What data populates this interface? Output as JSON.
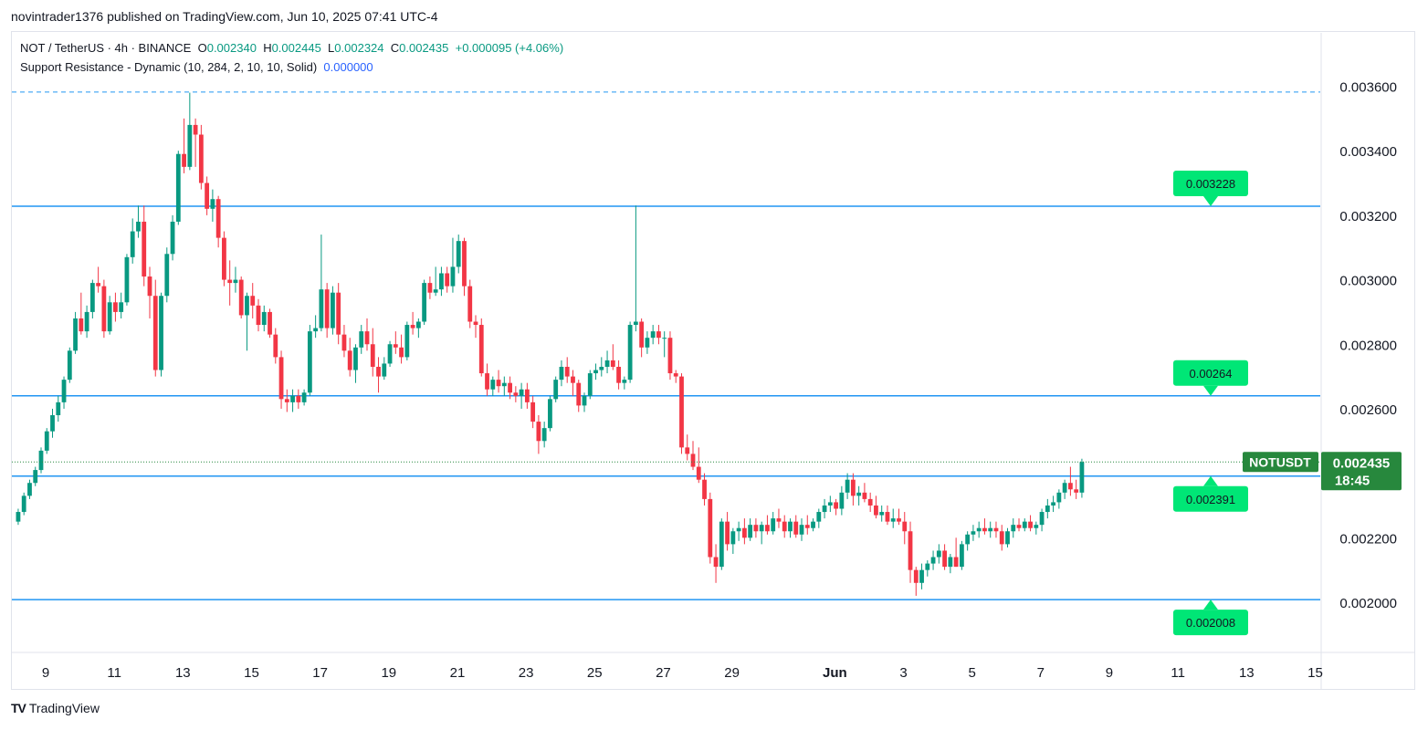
{
  "header": {
    "published": "novintrader1376 published on TradingView.com, Jun 10, 2025 07:41 UTC-4"
  },
  "legend": {
    "symbol": "NOT / TetherUS · 4h · BINANCE",
    "open_key": "O",
    "open": "0.002340",
    "high_key": "H",
    "high": "0.002445",
    "low_key": "L",
    "low": "0.002324",
    "close_key": "C",
    "close": "0.002435",
    "change": "+0.000095 (+4.06%)",
    "indicator": "Support Resistance - Dynamic (10, 284, 2, 10, 10, Solid)",
    "indicator_value": "0.000000"
  },
  "price_tag": {
    "symbol": "NOTUSDT",
    "price": "0.002435",
    "countdown": "18:45"
  },
  "footer": {
    "brand": "TradingView"
  },
  "colors": {
    "up": "#089981",
    "down": "#f23645",
    "level": "#2196f3",
    "label_bg": "#00e676",
    "price_tag": "#27883d"
  },
  "chart_data": {
    "type": "candlestick",
    "interval": "4h",
    "ylim": [
      0.00185,
      0.0037
    ],
    "y_ticks": [
      "0.002000",
      "0.002200",
      "0.002400",
      "0.002600",
      "0.002800",
      "0.003000",
      "0.003200",
      "0.003400",
      "0.003600"
    ],
    "x_ticks": [
      {
        "label": "9",
        "day": 9
      },
      {
        "label": "11",
        "day": 11
      },
      {
        "label": "13",
        "day": 13
      },
      {
        "label": "15",
        "day": 15
      },
      {
        "label": "17",
        "day": 17
      },
      {
        "label": "19",
        "day": 19
      },
      {
        "label": "21",
        "day": 21
      },
      {
        "label": "23",
        "day": 23
      },
      {
        "label": "25",
        "day": 25
      },
      {
        "label": "27",
        "day": 27
      },
      {
        "label": "29",
        "day": 29
      },
      {
        "label": "Jun",
        "day": 32
      },
      {
        "label": "3",
        "day": 34
      },
      {
        "label": "5",
        "day": 36
      },
      {
        "label": "7",
        "day": 38
      },
      {
        "label": "9",
        "day": 40
      },
      {
        "label": "11",
        "day": 42
      },
      {
        "label": "13",
        "day": 44
      },
      {
        "label": "15",
        "day": 46
      }
    ],
    "levels": [
      {
        "price": 0.003228,
        "label": "0.003228",
        "style": "solid"
      },
      {
        "price": 0.00264,
        "label": "0.00264",
        "style": "solid"
      },
      {
        "price": 0.002391,
        "label": "0.002391",
        "style": "solid"
      },
      {
        "price": 0.002008,
        "label": "0.002008",
        "style": "solid"
      },
      {
        "price": 0.003582,
        "label": "",
        "style": "dashed"
      }
    ],
    "last_price": 0.002435,
    "first_day": 8.2,
    "candles": [
      [
        0.00225,
        0.00229,
        0.00224,
        0.00228
      ],
      [
        0.00228,
        0.00234,
        0.00227,
        0.00233
      ],
      [
        0.00233,
        0.00238,
        0.00232,
        0.00237
      ],
      [
        0.00237,
        0.00242,
        0.00236,
        0.00241
      ],
      [
        0.00241,
        0.00248,
        0.0024,
        0.00247
      ],
      [
        0.00247,
        0.00254,
        0.00246,
        0.00253
      ],
      [
        0.00253,
        0.0026,
        0.00251,
        0.00258
      ],
      [
        0.00258,
        0.00264,
        0.00256,
        0.00262
      ],
      [
        0.00262,
        0.0027,
        0.0026,
        0.00269
      ],
      [
        0.00269,
        0.00279,
        0.00268,
        0.00278
      ],
      [
        0.00278,
        0.0029,
        0.00277,
        0.00288
      ],
      [
        0.00288,
        0.00296,
        0.00283,
        0.00284
      ],
      [
        0.00284,
        0.00292,
        0.00282,
        0.0029
      ],
      [
        0.0029,
        0.003,
        0.00288,
        0.00299
      ],
      [
        0.00299,
        0.00304,
        0.00296,
        0.00298
      ],
      [
        0.00298,
        0.003,
        0.00282,
        0.00284
      ],
      [
        0.00284,
        0.00295,
        0.00283,
        0.00293
      ],
      [
        0.00293,
        0.00296,
        0.00287,
        0.0029
      ],
      [
        0.0029,
        0.00296,
        0.00288,
        0.00293
      ],
      [
        0.00293,
        0.00308,
        0.00292,
        0.00307
      ],
      [
        0.00307,
        0.00319,
        0.00305,
        0.00315
      ],
      [
        0.00315,
        0.00323,
        0.00313,
        0.00318
      ],
      [
        0.00318,
        0.00323,
        0.00298,
        0.00301
      ],
      [
        0.00301,
        0.00304,
        0.00288,
        0.00295
      ],
      [
        0.00295,
        0.003,
        0.0027,
        0.00272
      ],
      [
        0.00272,
        0.00296,
        0.0027,
        0.00295
      ],
      [
        0.00295,
        0.0031,
        0.00293,
        0.00308
      ],
      [
        0.00308,
        0.0032,
        0.00306,
        0.00318
      ],
      [
        0.00318,
        0.0034,
        0.00317,
        0.00339
      ],
      [
        0.00339,
        0.0035,
        0.00333,
        0.00335
      ],
      [
        0.00335,
        0.00358,
        0.00334,
        0.00348
      ],
      [
        0.00348,
        0.0035,
        0.00335,
        0.00345
      ],
      [
        0.00345,
        0.00348,
        0.00328,
        0.0033
      ],
      [
        0.0033,
        0.00332,
        0.0032,
        0.00322
      ],
      [
        0.00322,
        0.00328,
        0.00318,
        0.00325
      ],
      [
        0.00325,
        0.00326,
        0.0031,
        0.00313
      ],
      [
        0.00313,
        0.00315,
        0.00298,
        0.003
      ],
      [
        0.003,
        0.00306,
        0.00292,
        0.00299
      ],
      [
        0.00299,
        0.00304,
        0.00296,
        0.003
      ],
      [
        0.003,
        0.00301,
        0.00288,
        0.00289
      ],
      [
        0.00289,
        0.00296,
        0.00278,
        0.00295
      ],
      [
        0.00295,
        0.00299,
        0.00288,
        0.00292
      ],
      [
        0.00292,
        0.00294,
        0.00284,
        0.00286
      ],
      [
        0.00286,
        0.00292,
        0.00284,
        0.0029
      ],
      [
        0.0029,
        0.00291,
        0.00282,
        0.00283
      ],
      [
        0.00283,
        0.00285,
        0.00274,
        0.00276
      ],
      [
        0.00276,
        0.00278,
        0.0026,
        0.00263
      ],
      [
        0.00263,
        0.00266,
        0.00259,
        0.00262
      ],
      [
        0.00262,
        0.00266,
        0.00259,
        0.00264
      ],
      [
        0.00264,
        0.00266,
        0.0026,
        0.00262
      ],
      [
        0.00262,
        0.00266,
        0.00261,
        0.00265
      ],
      [
        0.00265,
        0.00286,
        0.00264,
        0.00284
      ],
      [
        0.00284,
        0.00289,
        0.00282,
        0.00285
      ],
      [
        0.00285,
        0.00314,
        0.00284,
        0.00297
      ],
      [
        0.00297,
        0.00299,
        0.00282,
        0.00285
      ],
      [
        0.00285,
        0.00298,
        0.00283,
        0.00296
      ],
      [
        0.00296,
        0.00299,
        0.0028,
        0.00283
      ],
      [
        0.00283,
        0.00286,
        0.00276,
        0.00278
      ],
      [
        0.00278,
        0.00282,
        0.0027,
        0.00272
      ],
      [
        0.00272,
        0.0028,
        0.00268,
        0.00279
      ],
      [
        0.00279,
        0.00286,
        0.00277,
        0.00284
      ],
      [
        0.00284,
        0.00288,
        0.00278,
        0.0028
      ],
      [
        0.0028,
        0.00285,
        0.0027,
        0.00273
      ],
      [
        0.00273,
        0.00276,
        0.00265,
        0.0027
      ],
      [
        0.0027,
        0.00276,
        0.00269,
        0.00274
      ],
      [
        0.00274,
        0.00281,
        0.00273,
        0.0028
      ],
      [
        0.0028,
        0.00284,
        0.00277,
        0.00279
      ],
      [
        0.00279,
        0.00283,
        0.00274,
        0.00276
      ],
      [
        0.00276,
        0.00287,
        0.00275,
        0.00286
      ],
      [
        0.00286,
        0.0029,
        0.00283,
        0.00285
      ],
      [
        0.00285,
        0.00288,
        0.00282,
        0.00287
      ],
      [
        0.00287,
        0.003,
        0.00286,
        0.00299
      ],
      [
        0.00299,
        0.00301,
        0.00294,
        0.00296
      ],
      [
        0.00296,
        0.00304,
        0.00295,
        0.00297
      ],
      [
        0.00297,
        0.00304,
        0.00295,
        0.00302
      ],
      [
        0.00302,
        0.00304,
        0.00296,
        0.00298
      ],
      [
        0.00298,
        0.00313,
        0.00296,
        0.00304
      ],
      [
        0.00304,
        0.00314,
        0.00302,
        0.00312
      ],
      [
        0.00312,
        0.00313,
        0.00295,
        0.00298
      ],
      [
        0.00298,
        0.003,
        0.00285,
        0.00287
      ],
      [
        0.00287,
        0.00289,
        0.00282,
        0.00286
      ],
      [
        0.00286,
        0.00288,
        0.0027,
        0.00271
      ],
      [
        0.00271,
        0.00274,
        0.00264,
        0.00266
      ],
      [
        0.00266,
        0.0027,
        0.00264,
        0.00269
      ],
      [
        0.00269,
        0.00272,
        0.00265,
        0.00267
      ],
      [
        0.00267,
        0.0027,
        0.00264,
        0.00268
      ],
      [
        0.00268,
        0.0027,
        0.00263,
        0.00265
      ],
      [
        0.00265,
        0.00267,
        0.00262,
        0.00264
      ],
      [
        0.00264,
        0.00268,
        0.0026,
        0.00266
      ],
      [
        0.00266,
        0.00268,
        0.0026,
        0.00262
      ],
      [
        0.00262,
        0.00264,
        0.00254,
        0.00256
      ],
      [
        0.00256,
        0.00258,
        0.00246,
        0.0025
      ],
      [
        0.0025,
        0.00256,
        0.00248,
        0.00254
      ],
      [
        0.00254,
        0.00264,
        0.00253,
        0.00263
      ],
      [
        0.00263,
        0.0027,
        0.00262,
        0.00269
      ],
      [
        0.00269,
        0.00275,
        0.00267,
        0.00273
      ],
      [
        0.00273,
        0.00276,
        0.00268,
        0.0027
      ],
      [
        0.0027,
        0.00272,
        0.00264,
        0.00268
      ],
      [
        0.00268,
        0.00269,
        0.00259,
        0.00261
      ],
      [
        0.00261,
        0.00265,
        0.00259,
        0.00264
      ],
      [
        0.00264,
        0.00272,
        0.00263,
        0.00271
      ],
      [
        0.00271,
        0.00274,
        0.00269,
        0.00272
      ],
      [
        0.00272,
        0.00276,
        0.0027,
        0.00273
      ],
      [
        0.00273,
        0.00278,
        0.00271,
        0.00275
      ],
      [
        0.00275,
        0.0028,
        0.00272,
        0.00273
      ],
      [
        0.00273,
        0.00275,
        0.00266,
        0.00268
      ],
      [
        0.00268,
        0.0027,
        0.00266,
        0.00269
      ],
      [
        0.00269,
        0.00287,
        0.00268,
        0.00286
      ],
      [
        0.00286,
        0.00323,
        0.00284,
        0.00287
      ],
      [
        0.00287,
        0.00288,
        0.00276,
        0.00279
      ],
      [
        0.00279,
        0.00284,
        0.00277,
        0.00282
      ],
      [
        0.00282,
        0.00286,
        0.0028,
        0.00284
      ],
      [
        0.00284,
        0.00286,
        0.0028,
        0.00282
      ],
      [
        0.00282,
        0.00284,
        0.00276,
        0.00282
      ],
      [
        0.00282,
        0.00284,
        0.00269,
        0.00271
      ],
      [
        0.00271,
        0.00272,
        0.00268,
        0.0027
      ],
      [
        0.0027,
        0.00271,
        0.00246,
        0.00248
      ],
      [
        0.00248,
        0.00252,
        0.00244,
        0.00246
      ],
      [
        0.00246,
        0.0025,
        0.00241,
        0.00242
      ],
      [
        0.00242,
        0.00248,
        0.00237,
        0.00238
      ],
      [
        0.00238,
        0.0024,
        0.0023,
        0.00232
      ],
      [
        0.00232,
        0.00234,
        0.00212,
        0.00214
      ],
      [
        0.00214,
        0.00218,
        0.00206,
        0.00211
      ],
      [
        0.00211,
        0.00226,
        0.0021,
        0.00225
      ],
      [
        0.00225,
        0.00228,
        0.00216,
        0.00218
      ],
      [
        0.00218,
        0.00223,
        0.00215,
        0.00222
      ],
      [
        0.00222,
        0.00225,
        0.00219,
        0.00223
      ],
      [
        0.00223,
        0.00226,
        0.00218,
        0.0022
      ],
      [
        0.0022,
        0.00226,
        0.00219,
        0.00224
      ],
      [
        0.00224,
        0.00226,
        0.0022,
        0.00222
      ],
      [
        0.00222,
        0.00225,
        0.00218,
        0.00224
      ],
      [
        0.00224,
        0.00227,
        0.00221,
        0.00222
      ],
      [
        0.00222,
        0.00228,
        0.00221,
        0.00226
      ],
      [
        0.00226,
        0.00229,
        0.00223,
        0.00225
      ],
      [
        0.00225,
        0.00227,
        0.0022,
        0.00222
      ],
      [
        0.00222,
        0.00226,
        0.0022,
        0.00225
      ],
      [
        0.00225,
        0.00227,
        0.0022,
        0.00221
      ],
      [
        0.00221,
        0.00226,
        0.00219,
        0.00224
      ],
      [
        0.00224,
        0.00227,
        0.00221,
        0.00223
      ],
      [
        0.00223,
        0.00226,
        0.00222,
        0.00225
      ],
      [
        0.00225,
        0.00229,
        0.00223,
        0.00228
      ],
      [
        0.00228,
        0.00232,
        0.00226,
        0.0023
      ],
      [
        0.0023,
        0.00233,
        0.00228,
        0.00231
      ],
      [
        0.00231,
        0.00232,
        0.00227,
        0.00229
      ],
      [
        0.00229,
        0.00236,
        0.00227,
        0.00234
      ],
      [
        0.00234,
        0.0024,
        0.00232,
        0.00238
      ],
      [
        0.00238,
        0.0024,
        0.0023,
        0.00233
      ],
      [
        0.00233,
        0.00236,
        0.0023,
        0.00234
      ],
      [
        0.00234,
        0.00237,
        0.00231,
        0.00232
      ],
      [
        0.00232,
        0.00234,
        0.00228,
        0.0023
      ],
      [
        0.0023,
        0.00233,
        0.00226,
        0.00227
      ],
      [
        0.00227,
        0.0023,
        0.00225,
        0.00228
      ],
      [
        0.00228,
        0.0023,
        0.00224,
        0.00225
      ],
      [
        0.00225,
        0.00229,
        0.00223,
        0.00226
      ],
      [
        0.00226,
        0.00229,
        0.00224,
        0.00225
      ],
      [
        0.00225,
        0.00228,
        0.00218,
        0.00222
      ],
      [
        0.00222,
        0.00225,
        0.00206,
        0.0021
      ],
      [
        0.0021,
        0.00211,
        0.00202,
        0.00206
      ],
      [
        0.00206,
        0.00212,
        0.00204,
        0.0021
      ],
      [
        0.0021,
        0.00213,
        0.00208,
        0.00212
      ],
      [
        0.00212,
        0.00216,
        0.0021,
        0.00214
      ],
      [
        0.00214,
        0.00218,
        0.00212,
        0.00216
      ],
      [
        0.00216,
        0.00218,
        0.0021,
        0.00211
      ],
      [
        0.00211,
        0.00215,
        0.00209,
        0.00214
      ],
      [
        0.00214,
        0.0022,
        0.00211,
        0.00211
      ],
      [
        0.00211,
        0.00219,
        0.0021,
        0.00218
      ],
      [
        0.00218,
        0.00222,
        0.00216,
        0.00221
      ],
      [
        0.00221,
        0.00224,
        0.00219,
        0.00222
      ],
      [
        0.00222,
        0.00225,
        0.0022,
        0.00223
      ],
      [
        0.00223,
        0.00226,
        0.00221,
        0.00222
      ],
      [
        0.00222,
        0.00225,
        0.0022,
        0.00223
      ],
      [
        0.00223,
        0.00225,
        0.0022,
        0.00222
      ],
      [
        0.00222,
        0.00224,
        0.00216,
        0.00218
      ],
      [
        0.00218,
        0.00223,
        0.00217,
        0.00222
      ],
      [
        0.00222,
        0.00226,
        0.0022,
        0.00224
      ],
      [
        0.00224,
        0.00226,
        0.00222,
        0.00223
      ],
      [
        0.00223,
        0.00226,
        0.00222,
        0.00225
      ],
      [
        0.00225,
        0.00227,
        0.00222,
        0.00223
      ],
      [
        0.00223,
        0.00225,
        0.00221,
        0.00224
      ],
      [
        0.00224,
        0.00229,
        0.00222,
        0.00228
      ],
      [
        0.00228,
        0.00232,
        0.00226,
        0.0023
      ],
      [
        0.0023,
        0.00233,
        0.00228,
        0.00231
      ],
      [
        0.00231,
        0.00235,
        0.00229,
        0.00234
      ],
      [
        0.00234,
        0.00238,
        0.00232,
        0.00237
      ],
      [
        0.00237,
        0.00242,
        0.00233,
        0.00235
      ],
      [
        0.00235,
        0.00238,
        0.00232,
        0.00234
      ],
      [
        0.00234,
        0.002445,
        0.002324,
        0.002435
      ]
    ]
  }
}
